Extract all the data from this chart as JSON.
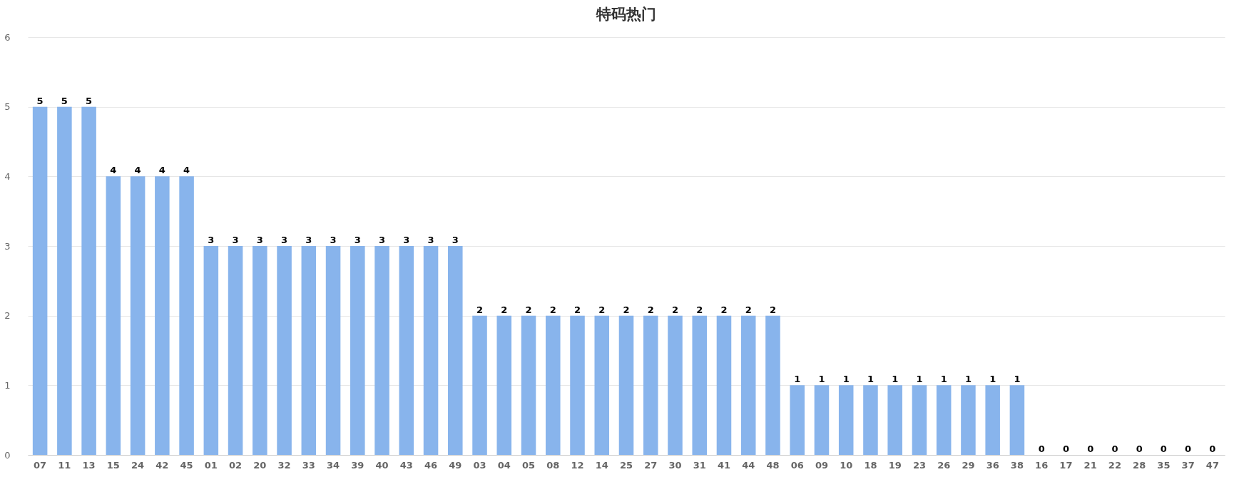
{
  "chart_data": {
    "type": "bar",
    "title": "特码热门",
    "categories": [
      "07",
      "11",
      "13",
      "15",
      "24",
      "42",
      "45",
      "01",
      "02",
      "20",
      "32",
      "33",
      "34",
      "39",
      "40",
      "43",
      "46",
      "49",
      "03",
      "04",
      "05",
      "08",
      "12",
      "14",
      "25",
      "27",
      "30",
      "31",
      "41",
      "44",
      "48",
      "06",
      "09",
      "10",
      "18",
      "19",
      "23",
      "26",
      "29",
      "36",
      "38",
      "16",
      "17",
      "21",
      "22",
      "28",
      "35",
      "37",
      "47"
    ],
    "values": [
      5,
      5,
      5,
      4,
      4,
      4,
      4,
      3,
      3,
      3,
      3,
      3,
      3,
      3,
      3,
      3,
      3,
      3,
      2,
      2,
      2,
      2,
      2,
      2,
      2,
      2,
      2,
      2,
      2,
      2,
      2,
      1,
      1,
      1,
      1,
      1,
      1,
      1,
      1,
      1,
      1,
      0,
      0,
      0,
      0,
      0,
      0,
      0,
      0
    ],
    "color": "#88b4ec",
    "ylim": [
      0,
      6
    ],
    "yticks": [
      0,
      1,
      2,
      3,
      4,
      5,
      6
    ],
    "grid": "y",
    "data_labels": true
  }
}
